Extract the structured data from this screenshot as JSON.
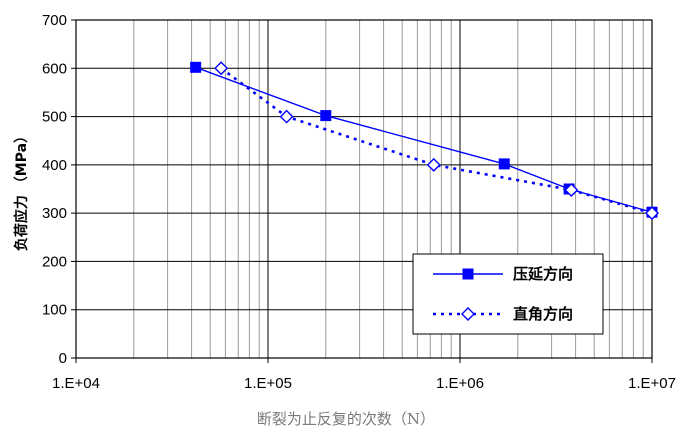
{
  "chart_data": {
    "type": "line",
    "xscale": "log",
    "xlim": [
      10000,
      10000000
    ],
    "ylim": [
      0,
      700
    ],
    "xticks": [
      10000,
      100000,
      1000000,
      10000000
    ],
    "xtick_labels": [
      "1.E+04",
      "1.E+05",
      "1.E+06",
      "1.E+07"
    ],
    "yticks": [
      0,
      100,
      200,
      300,
      400,
      500,
      600,
      700
    ],
    "ytick_labels": [
      "0",
      "100",
      "200",
      "300",
      "400",
      "500",
      "600",
      "700"
    ],
    "xlabel": "断裂为止反复的次数（N）",
    "ylabel": "负荷应力 （MPa）",
    "grid": true,
    "legend_position": "bottom-right",
    "series": [
      {
        "name": "压延方向",
        "color": "#0000ff",
        "line_style": "solid",
        "marker": "filled-square",
        "x": [
          42000,
          200000,
          1700000,
          3700000,
          10000000
        ],
        "y": [
          602,
          502,
          402,
          350,
          302
        ]
      },
      {
        "name": "直角方向",
        "color": "#0000ff",
        "line_style": "dotted",
        "marker": "open-diamond",
        "x": [
          57000,
          125000,
          730000,
          3800000,
          10000000
        ],
        "y": [
          600,
          500,
          400,
          348,
          300
        ]
      }
    ]
  }
}
